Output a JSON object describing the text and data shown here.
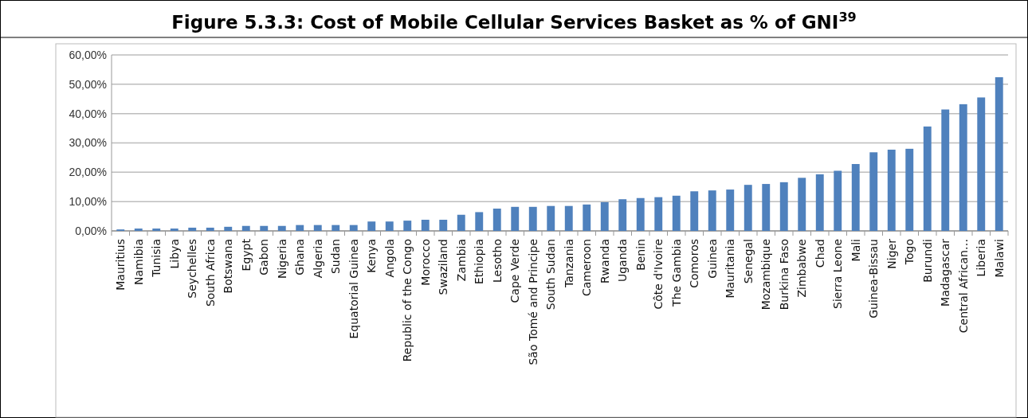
{
  "chart_data": {
    "type": "bar",
    "title": "Figure 5.3.3:  Cost of Mobile Cellular Services Basket as % of GNI$^{39}$",
    "categories": [
      "Mauritius",
      "Namibia",
      "Tunisia",
      "Libya",
      "Seychelles",
      "South Africa",
      "Botswana",
      "Egypt",
      "Gabon",
      "Nigeria",
      "Ghana",
      "Algeria",
      "Sudan",
      "Equatorial Guinea",
      "Kenya",
      "Angola",
      "Republic of the Congo",
      "Morocco",
      "Swaziland",
      "Zambia",
      "Ethiopia",
      "Lesotho",
      "Cape Verde",
      "São Tomé and Principe",
      "South Sudan",
      "Tanzania",
      "Cameroon",
      "Rwanda",
      "Uganda",
      "Benin",
      "Côte d'Ivoire",
      "The Gambia",
      "Comoros",
      "Guinea",
      "Mauritania",
      "Senegal",
      "Mozambique",
      "Burkina Faso",
      "Zimbabwe",
      "Chad",
      "Sierra Leone",
      "Mali",
      "Guinea-Bissau",
      "Niger",
      "Togo",
      "Burundi",
      "Madagascar",
      "Central African…",
      "Liberia",
      "Malawi"
    ],
    "values": [
      0.5,
      0.8,
      0.8,
      0.8,
      1.1,
      1.1,
      1.4,
      1.7,
      1.7,
      1.7,
      2.0,
      2.0,
      2.0,
      2.0,
      3.2,
      3.2,
      3.5,
      3.8,
      3.8,
      5.5,
      6.4,
      7.6,
      8.2,
      8.2,
      8.5,
      8.5,
      9.0,
      9.8,
      10.8,
      11.2,
      11.5,
      12.0,
      13.5,
      13.8,
      14.1,
      15.7,
      16.0,
      16.6,
      18.1,
      19.3,
      20.5,
      22.8,
      26.8,
      27.7,
      28.0,
      35.6,
      41.4,
      43.2,
      45.5,
      52.4
    ],
    "color": "#4f81bd",
    "ylim": [
      0,
      60
    ],
    "yticks": [
      {
        "value": 0,
        "label": "0,00%"
      },
      {
        "value": 10,
        "label": "10,00%"
      },
      {
        "value": 20,
        "label": "20,00%"
      },
      {
        "value": 30,
        "label": "30,00%"
      },
      {
        "value": 40,
        "label": "40,00%"
      },
      {
        "value": 50,
        "label": "50,00%"
      },
      {
        "value": 60,
        "label": "60,00%"
      }
    ],
    "grid": "y"
  }
}
